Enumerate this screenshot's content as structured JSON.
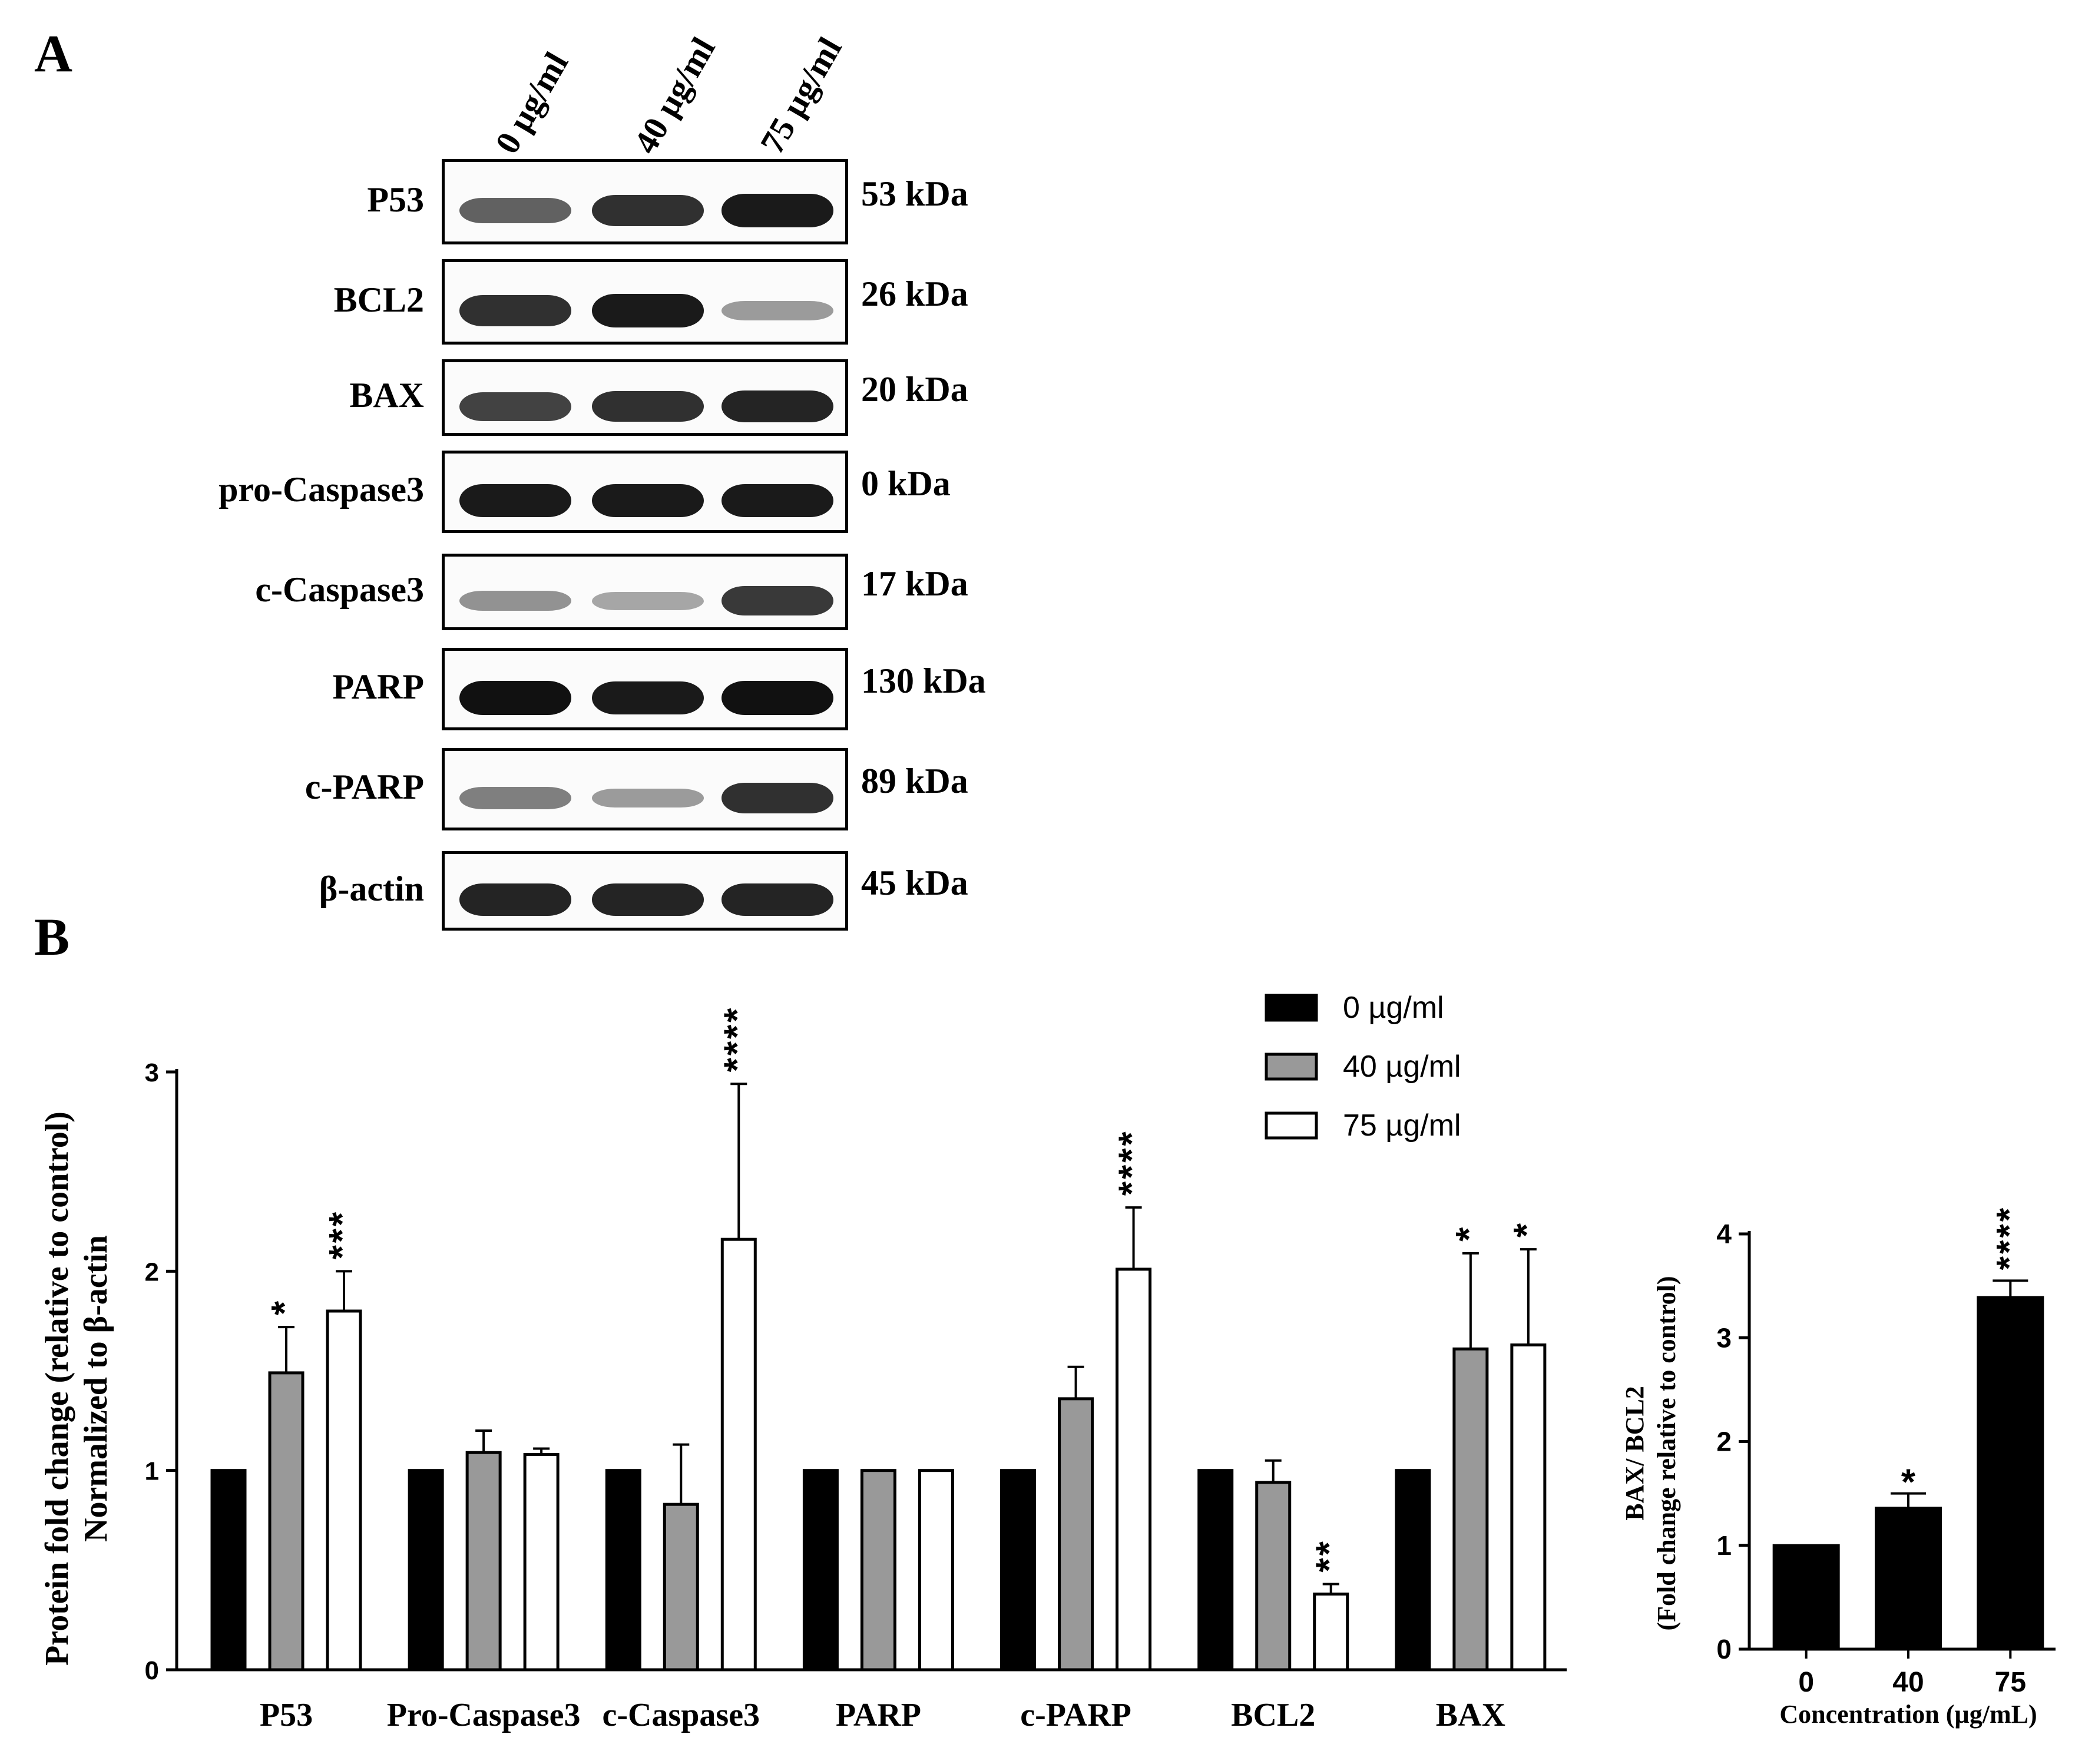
{
  "panel_a": {
    "letter": "A",
    "lanes": [
      "0 µg/ml",
      "40 µg/ml",
      "75 µg/ml"
    ],
    "blots": [
      {
        "label": "P53",
        "kda": "53 kDa",
        "intensity": [
          0.6,
          0.85,
          0.95
        ]
      },
      {
        "label": "BCL2",
        "kda": "26 kDa",
        "intensity": [
          0.85,
          0.95,
          0.3
        ]
      },
      {
        "label": "BAX",
        "kda": "20 kDa",
        "intensity": [
          0.75,
          0.85,
          0.9
        ]
      },
      {
        "label": "pro-Caspase3",
        "kda": "0 kDa",
        "intensity": [
          0.95,
          0.95,
          0.95
        ]
      },
      {
        "label": "c-Caspase3",
        "kda": "17 kDa",
        "intensity": [
          0.35,
          0.25,
          0.8
        ]
      },
      {
        "label": "PARP",
        "kda": "130 kDa",
        "intensity": [
          1.0,
          0.95,
          1.0
        ]
      },
      {
        "label": "c-PARP",
        "kda": "89 kDa",
        "intensity": [
          0.45,
          0.3,
          0.85
        ]
      },
      {
        "label": "β-actin",
        "kda": "45 kDa",
        "intensity": [
          0.9,
          0.9,
          0.9
        ]
      }
    ]
  },
  "panel_b": {
    "letter": "B"
  },
  "chart_data": [
    {
      "type": "bar",
      "categories": [
        "P53",
        "Pro-Caspase3",
        "c-Caspase3",
        "PARP",
        "c-PARP",
        "BCL2",
        "BAX"
      ],
      "ylabel_line1": "Protein fold change (relative to control)",
      "ylabel_line2": "Normalized to β-actin",
      "ylim": [
        0,
        3
      ],
      "yticks": [
        "0",
        "1",
        "2",
        "3"
      ],
      "legend_position": "top-right",
      "series": [
        {
          "name": "0 µg/ml",
          "color": "#000000",
          "values": [
            1,
            1,
            1,
            1,
            1,
            1,
            1
          ],
          "errors": [
            0,
            0,
            0,
            0,
            0,
            0,
            0
          ],
          "sig": [
            "",
            "",
            "",
            "",
            "",
            "",
            ""
          ]
        },
        {
          "name": "40 µg/ml",
          "color": "#999999",
          "values": [
            1.49,
            1.09,
            0.83,
            1.0,
            1.36,
            0.94,
            1.61
          ],
          "errors": [
            0.23,
            0.11,
            0.3,
            0,
            0.16,
            0.11,
            0.48
          ],
          "sig": [
            "*",
            "",
            "",
            "",
            "",
            "",
            "*"
          ]
        },
        {
          "name": "75 µg/ml",
          "color": "#ffffff",
          "values": [
            1.8,
            1.08,
            2.16,
            1.0,
            2.01,
            0.38,
            1.63
          ],
          "errors": [
            0.2,
            0.03,
            0.78,
            0,
            0.31,
            0.05,
            0.48
          ],
          "sig": [
            "***",
            "",
            "****",
            "",
            "****",
            "**",
            "*"
          ]
        }
      ]
    },
    {
      "type": "bar",
      "categories": [
        "0",
        "40",
        "75"
      ],
      "values": [
        1.0,
        1.36,
        3.39
      ],
      "errors": [
        0,
        0.14,
        0.16
      ],
      "sig": [
        "",
        "*",
        "****"
      ],
      "color": "#000000",
      "xlabel": "Concentration (µg/mL)",
      "ylabel_line1": "BAX/ BCL2",
      "ylabel_line2": "(Fold change relative to control)",
      "ylim": [
        0,
        4
      ],
      "yticks": [
        "0",
        "1",
        "2",
        "3",
        "4"
      ]
    }
  ]
}
